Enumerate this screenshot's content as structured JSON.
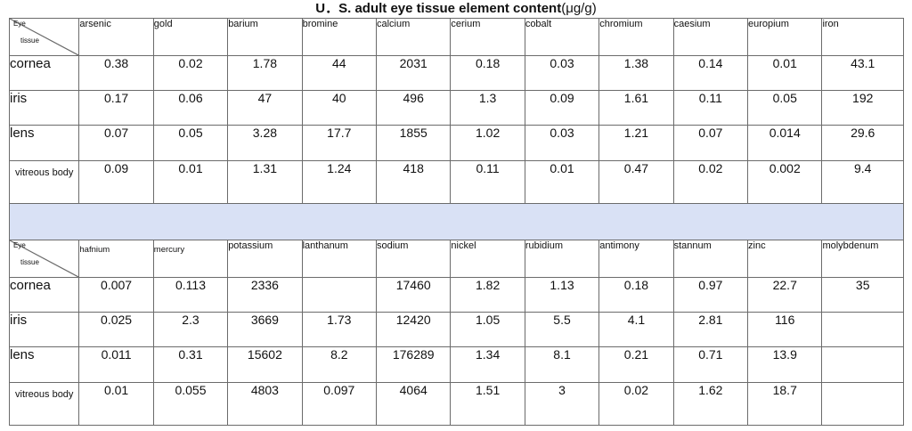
{
  "title": "U．S. adult eye tissue element content",
  "unit": "(μg/g)",
  "corner_top": "Eye",
  "corner_bottom": "tissue",
  "section1": {
    "headers": [
      "arsenic",
      "gold",
      "barium",
      "bromine",
      "calcium",
      "cerium",
      "cobalt",
      "chromium",
      "caesium",
      "europium",
      "iron"
    ],
    "rows": [
      {
        "label": "cornea",
        "values": [
          "0.38",
          "0.02",
          "1.78",
          "44",
          "2031",
          "0.18",
          "0.03",
          "1.38",
          "0.14",
          "0.01",
          "43.1"
        ]
      },
      {
        "label": "iris",
        "values": [
          "0.17",
          "0.06",
          "47",
          "40",
          "496",
          "1.3",
          "0.09",
          "1.61",
          "0.11",
          "0.05",
          "192"
        ]
      },
      {
        "label": "lens",
        "values": [
          "0.07",
          "0.05",
          "3.28",
          "17.7",
          "1855",
          "1.02",
          "0.03",
          "1.21",
          "0.07",
          "0.014",
          "29.6"
        ]
      },
      {
        "label": "vitreous body",
        "values": [
          "0.09",
          "0.01",
          "1.31",
          "1.24",
          "418",
          "0.11",
          "0.01",
          "0.47",
          "0.02",
          "0.002",
          "9.4"
        ]
      }
    ]
  },
  "section2": {
    "headers": [
      "hafnium",
      "mercury",
      "potassium",
      "lanthanum",
      "sodium",
      "nickel",
      "rubidium",
      "antimony",
      "stannum",
      "zinc",
      "molybdenum"
    ],
    "rows": [
      {
        "label": "cornea",
        "values": [
          "0.007",
          "0.113",
          "2336",
          "",
          "17460",
          "1.82",
          "1.13",
          "0.18",
          "0.97",
          "22.7",
          "35"
        ]
      },
      {
        "label": "iris",
        "values": [
          "0.025",
          "2.3",
          "3669",
          "1.73",
          "12420",
          "1.05",
          "5.5",
          "4.1",
          "2.81",
          "116",
          ""
        ]
      },
      {
        "label": "lens",
        "values": [
          "0.011",
          "0.31",
          "15602",
          "8.2",
          "176289",
          "1.34",
          "8.1",
          "0.21",
          "0.71",
          "13.9",
          ""
        ]
      },
      {
        "label": "vitreous body",
        "values": [
          "0.01",
          "0.055",
          "4803",
          "0.097",
          "4064",
          "1.51",
          "3",
          "0.02",
          "1.62",
          "18.7",
          ""
        ]
      }
    ]
  }
}
